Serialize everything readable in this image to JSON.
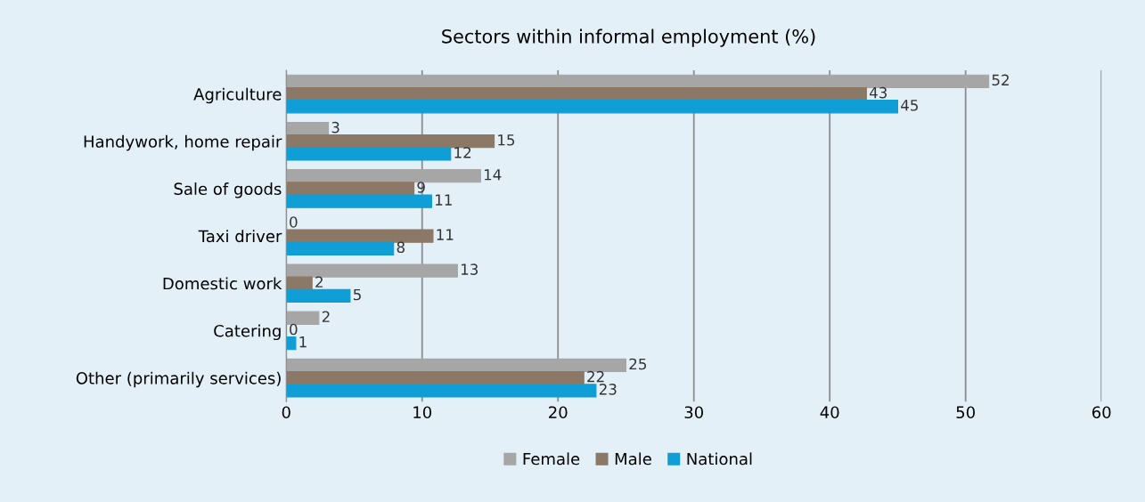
{
  "chart_data": {
    "type": "bar",
    "orientation": "horizontal",
    "title": "Sectors within informal employment (%)",
    "categories": [
      "Agriculture",
      "Handywork, home repair",
      "Sale of goods",
      "Taxi driver",
      "Domestic work",
      "Catering",
      "Other (primarily services)"
    ],
    "series": [
      {
        "name": "Female",
        "color": "#a6a6a6",
        "values": [
          51.7,
          3.1,
          14.3,
          0,
          12.6,
          2.4,
          25.0
        ],
        "value_labels": [
          "52",
          "3",
          "14",
          "0",
          "13",
          "2",
          "25"
        ]
      },
      {
        "name": "Male",
        "color": "#8b7866",
        "values": [
          42.7,
          15.3,
          9.4,
          10.8,
          1.9,
          0,
          21.9
        ],
        "value_labels": [
          "43",
          "15",
          "9",
          "11",
          "2",
          "0",
          "22"
        ]
      },
      {
        "name": "National",
        "color": "#0f9ed5",
        "values": [
          45.0,
          12.1,
          10.7,
          7.9,
          4.7,
          0.7,
          22.8
        ],
        "value_labels": [
          "45",
          "12",
          "11",
          "8",
          "5",
          "1",
          "23"
        ]
      }
    ],
    "xlim": [
      0,
      60
    ],
    "xticks": [
      0,
      10,
      20,
      30,
      40,
      50,
      60
    ],
    "grid": "x",
    "legend": "bottom"
  }
}
